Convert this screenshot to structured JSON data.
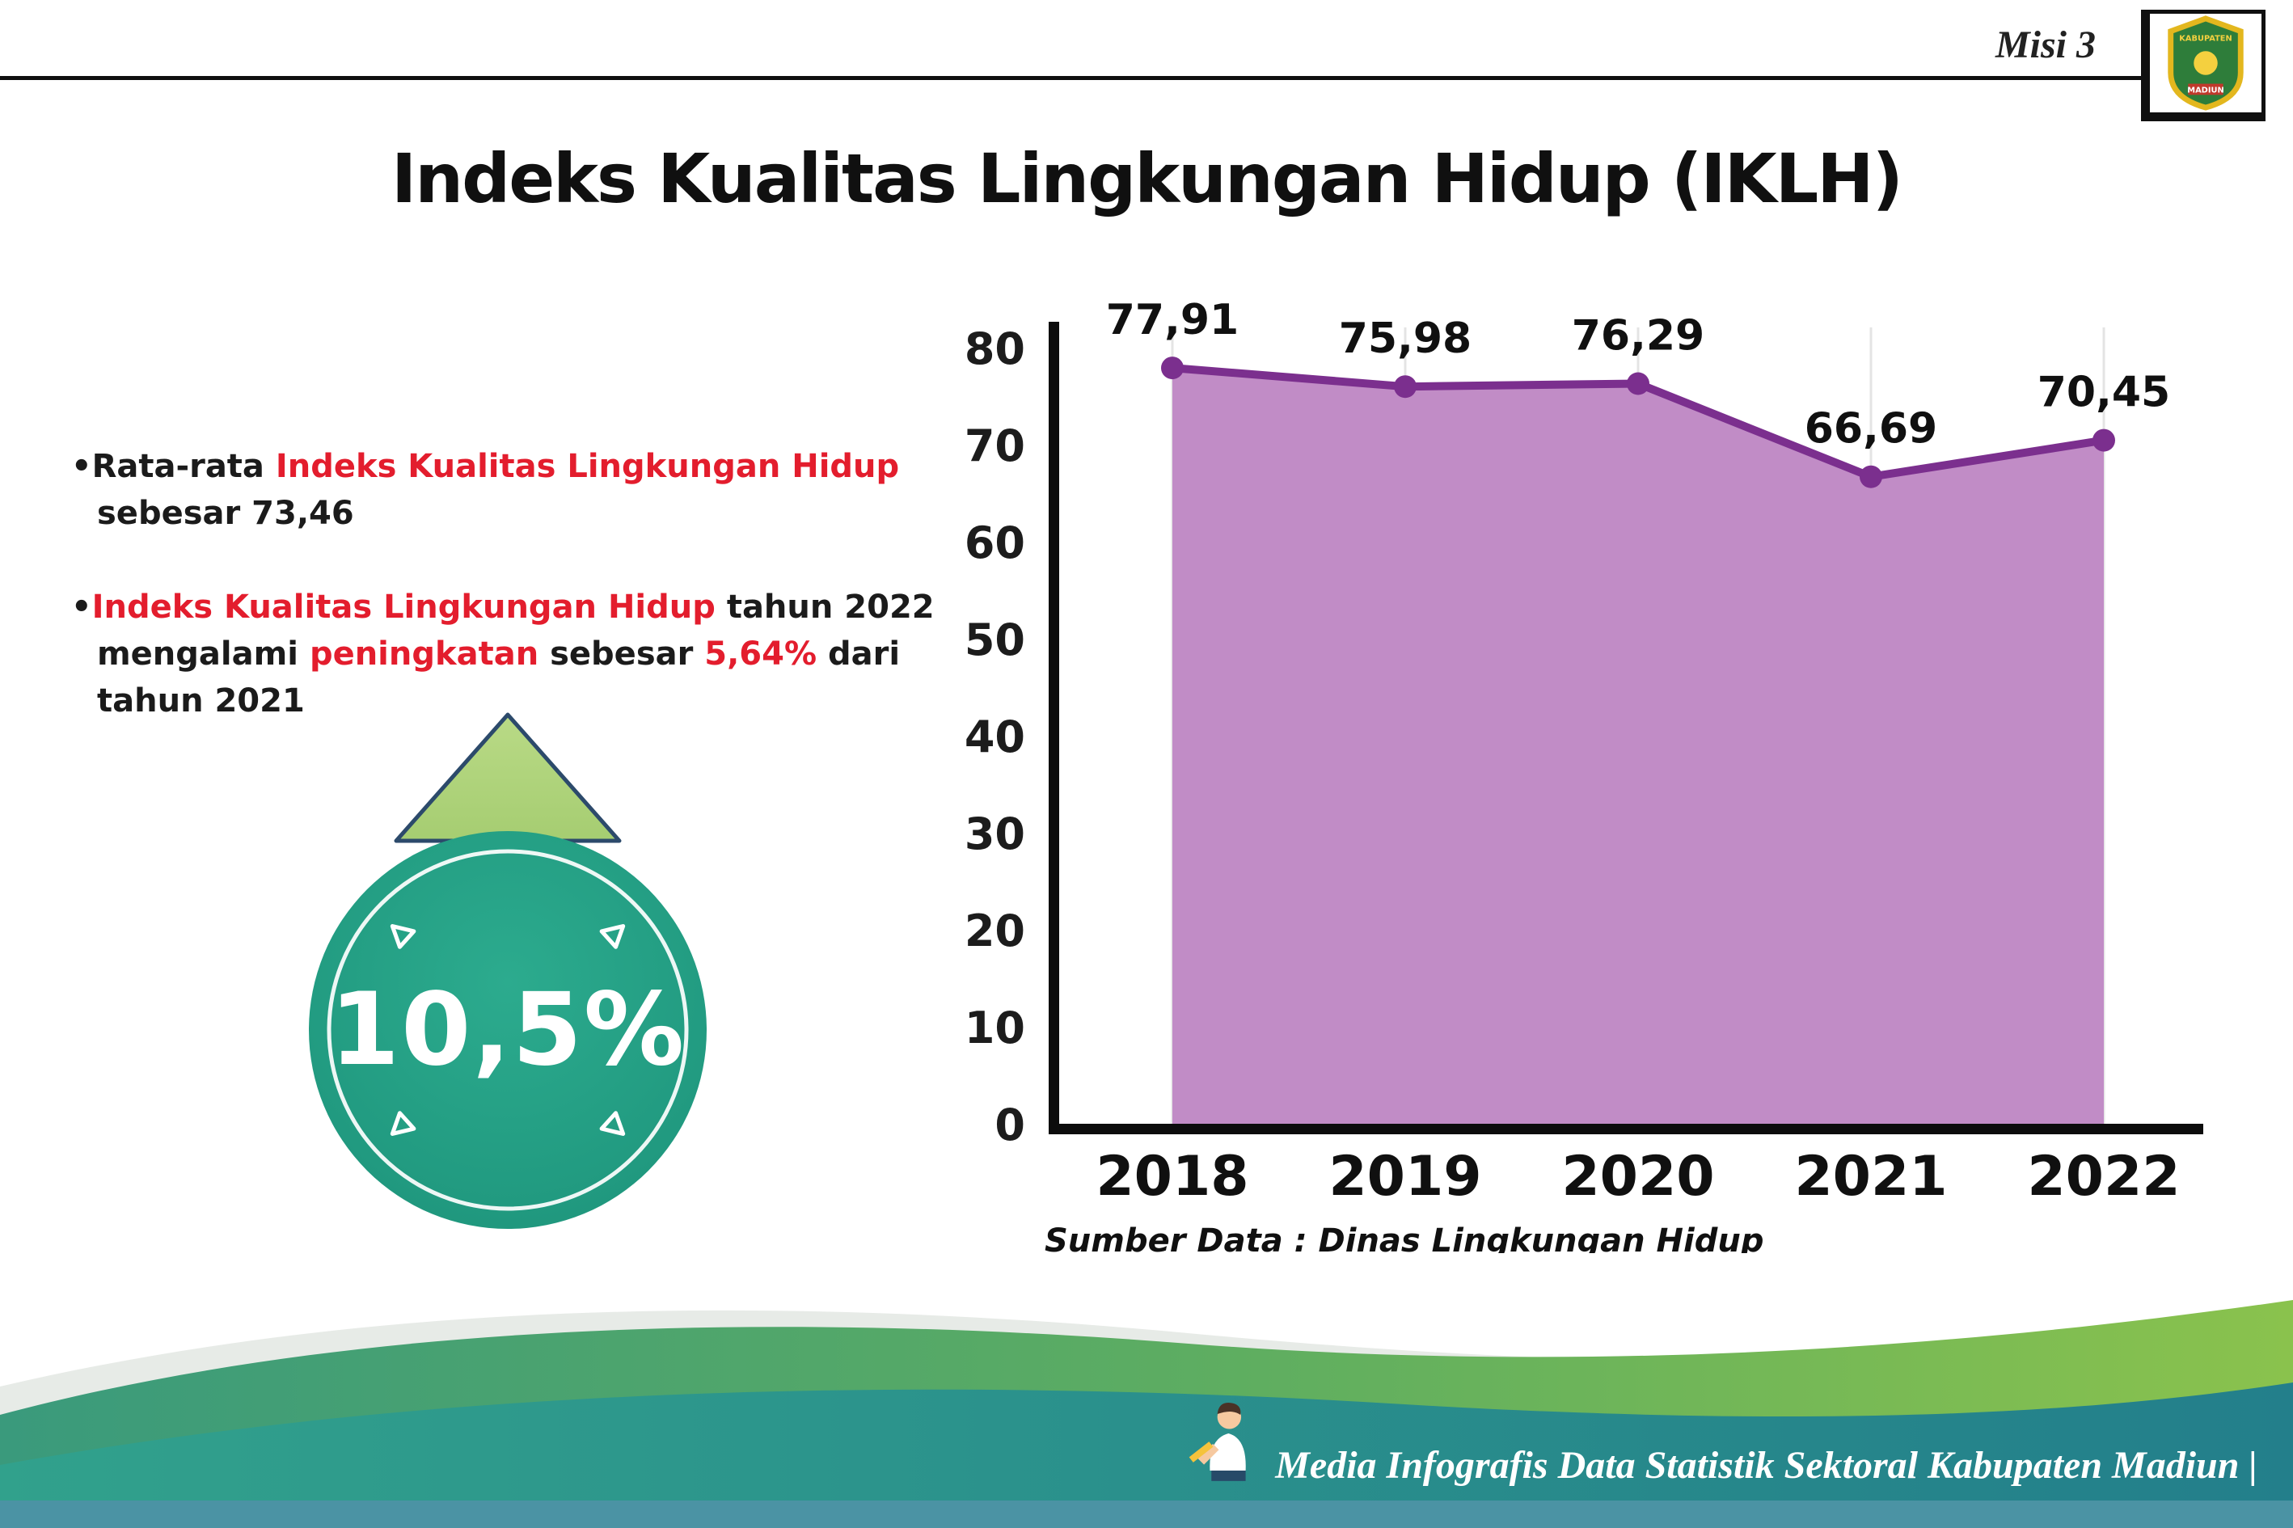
{
  "page": {
    "misi_label": "Misi 3",
    "title": "Indeks Kualitas Lingkungan Hidup (IKLH)"
  },
  "logo": {
    "top_text": "KABUPATEN",
    "bottom_text": "MADIUN"
  },
  "bullets": {
    "marker": "•",
    "b1_s1": "Rata-rata ",
    "b1_s2": "Indeks Kualitas Lingkungan Hidup",
    "b1_s3": " sebesar 73,46",
    "b2_s1": "Indeks Kualitas Lingkungan Hidup",
    "b2_s2": " tahun 2022 mengalami ",
    "b2_s3": "peningkatan",
    "b2_s4": " sebesar ",
    "b2_s5": "5,64%",
    "b2_s6": " dari tahun 2021"
  },
  "badge": {
    "value": "10,5%",
    "direction": "up"
  },
  "chart_data": {
    "type": "area",
    "title": "",
    "categories": [
      "2018",
      "2019",
      "2020",
      "2021",
      "2022"
    ],
    "values": [
      77.91,
      75.98,
      76.29,
      66.69,
      70.45
    ],
    "value_labels": [
      "77,91",
      "75,98",
      "76,29",
      "66,69",
      "70,45"
    ],
    "ylim": [
      0,
      80
    ],
    "yticks": [
      0,
      10,
      20,
      30,
      40,
      50,
      60,
      70,
      80
    ],
    "grid": "faint vertical gridlines at each year",
    "legend": "none",
    "source": "Sumber Data : Dinas Lingkungan Hidup",
    "colors": {
      "area_fill": "#c18cc6",
      "line": "#7b2f8e",
      "point": "#7b2f8e",
      "axis": "#0c0c0c"
    }
  },
  "footer": {
    "text": "Media Infografis Data Statistik Sektoral Kabupaten Madiun |"
  }
}
